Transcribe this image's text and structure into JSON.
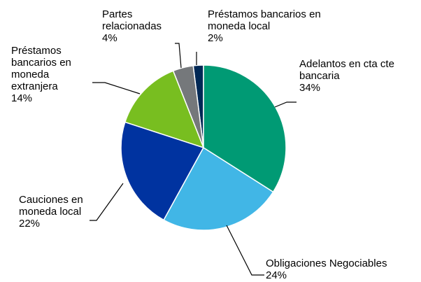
{
  "chart_data": {
    "type": "pie",
    "categories": [
      "Adelantos en cta cte bancaria",
      "Obligaciones Negociables",
      "Cauciones en moneda local",
      "Préstamos bancarios en moneda extranjera",
      "Partes relacionadas",
      "Préstamos bancarios en moneda local"
    ],
    "values": [
      34,
      24,
      22,
      14,
      4,
      2
    ],
    "value_labels": [
      "34%",
      "24%",
      "22%",
      "14%",
      "4%",
      "2%"
    ],
    "colors": [
      "#009a74",
      "#41b6e6",
      "#0033a0",
      "#78be20",
      "#75787b",
      "#002855"
    ]
  }
}
